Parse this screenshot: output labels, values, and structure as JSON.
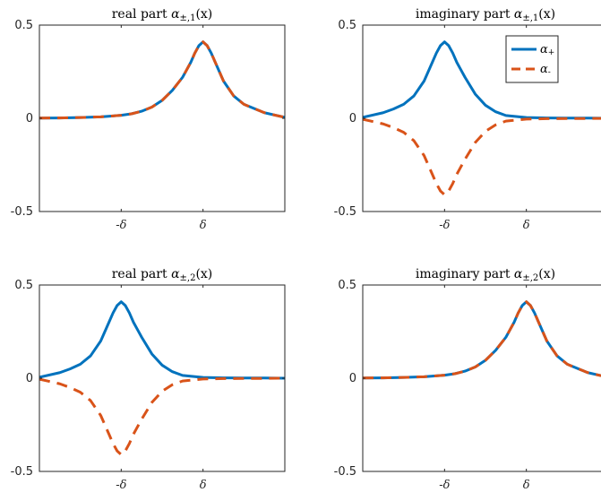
{
  "colors": {
    "alpha_plus": "#0072BD",
    "alpha_minus": "#D95319"
  },
  "chart_data": [
    {
      "type": "line",
      "title": "real part α±,1(x)",
      "title_main": "real part ",
      "title_sym": "α",
      "title_sub": "±,1",
      "title_arg": "(x)",
      "xlim": [
        -3,
        3
      ],
      "ylim": [
        -0.5,
        0.5
      ],
      "yticks": [
        0.5,
        0,
        -0.5
      ],
      "ytick_labels": [
        "0.5",
        "0",
        "-0.5"
      ],
      "xticks": [
        -1,
        1
      ],
      "xtick_labels": [
        "-δ",
        "δ"
      ],
      "legend": null,
      "series": [
        {
          "name": "α+",
          "style": "solid",
          "color": "#0072BD",
          "x": [
            -3,
            -2.5,
            -2,
            -1.5,
            -1,
            -0.75,
            -0.5,
            -0.25,
            0,
            0.25,
            0.5,
            0.6,
            0.7,
            0.8,
            0.9,
            1.0,
            1.1,
            1.2,
            1.3,
            1.4,
            1.5,
            1.75,
            2,
            2.5,
            3
          ],
          "y": [
            0.001,
            0.002,
            0.004,
            0.008,
            0.016,
            0.024,
            0.038,
            0.06,
            0.096,
            0.15,
            0.22,
            0.26,
            0.3,
            0.35,
            0.39,
            0.41,
            0.39,
            0.35,
            0.3,
            0.25,
            0.2,
            0.12,
            0.075,
            0.03,
            0.005
          ]
        },
        {
          "name": "α-",
          "style": "dashed",
          "color": "#D95319",
          "x": [
            -3,
            -2.5,
            -2,
            -1.5,
            -1,
            -0.75,
            -0.5,
            -0.25,
            0,
            0.25,
            0.5,
            0.6,
            0.7,
            0.8,
            0.9,
            1.0,
            1.1,
            1.2,
            1.3,
            1.4,
            1.5,
            1.75,
            2,
            2.5,
            3
          ],
          "y": [
            0.001,
            0.002,
            0.004,
            0.008,
            0.016,
            0.024,
            0.038,
            0.06,
            0.096,
            0.15,
            0.22,
            0.26,
            0.3,
            0.35,
            0.39,
            0.41,
            0.39,
            0.35,
            0.3,
            0.25,
            0.2,
            0.12,
            0.075,
            0.03,
            0.005
          ]
        }
      ]
    },
    {
      "type": "line",
      "title": "imaginary part α±,1(x)",
      "title_main": "imaginary part ",
      "title_sym": "α",
      "title_sub": "±,1",
      "title_arg": "(x)",
      "xlim": [
        -3,
        3
      ],
      "ylim": [
        -0.5,
        0.5
      ],
      "yticks": [
        0.5,
        0,
        -0.5
      ],
      "ytick_labels": [
        "0.5",
        "0",
        "-0.5"
      ],
      "xticks": [
        -1,
        1
      ],
      "xtick_labels": [
        "-δ",
        "δ"
      ],
      "legend": {
        "position": "top-right",
        "entries": [
          {
            "label": "α",
            "sub": "+",
            "style": "solid",
            "color": "#0072BD"
          },
          {
            "label": "α",
            "sub": "-",
            "style": "dashed",
            "color": "#D95319"
          }
        ]
      },
      "series": [
        {
          "name": "α+",
          "style": "solid",
          "color": "#0072BD",
          "x": [
            -3,
            -2.5,
            -2.25,
            -2,
            -1.75,
            -1.5,
            -1.4,
            -1.3,
            -1.2,
            -1.1,
            -1,
            -0.9,
            -0.8,
            -0.7,
            -0.6,
            -0.5,
            -0.25,
            0,
            0.25,
            0.5,
            1,
            1.5,
            2,
            2.5,
            3
          ],
          "y": [
            0.005,
            0.03,
            0.05,
            0.075,
            0.12,
            0.2,
            0.25,
            0.3,
            0.35,
            0.39,
            0.41,
            0.39,
            0.35,
            0.3,
            0.26,
            0.22,
            0.13,
            0.07,
            0.035,
            0.015,
            0.004,
            0.002,
            0.001,
            0.001,
            0
          ]
        },
        {
          "name": "α-",
          "style": "dashed",
          "color": "#D95319",
          "x": [
            -3,
            -2.5,
            -2.25,
            -2,
            -1.75,
            -1.5,
            -1.4,
            -1.3,
            -1.2,
            -1.1,
            -1,
            -0.9,
            -0.8,
            -0.7,
            -0.6,
            -0.5,
            -0.25,
            0,
            0.25,
            0.5,
            1,
            1.5,
            2,
            2.5,
            3
          ],
          "y": [
            -0.005,
            -0.03,
            -0.05,
            -0.075,
            -0.12,
            -0.2,
            -0.25,
            -0.3,
            -0.35,
            -0.39,
            -0.41,
            -0.39,
            -0.35,
            -0.3,
            -0.26,
            -0.22,
            -0.13,
            -0.07,
            -0.035,
            -0.015,
            -0.004,
            -0.002,
            -0.001,
            -0.001,
            0
          ]
        }
      ]
    },
    {
      "type": "line",
      "title": "real part α±,2(x)",
      "title_main": "real part ",
      "title_sym": "α",
      "title_sub": "±,2",
      "title_arg": "(x)",
      "xlim": [
        -3,
        3
      ],
      "ylim": [
        -0.5,
        0.5
      ],
      "yticks": [
        0.5,
        0,
        -0.5
      ],
      "ytick_labels": [
        "0.5",
        "0",
        "-0.5"
      ],
      "xticks": [
        -1,
        1
      ],
      "xtick_labels": [
        "-δ",
        "δ"
      ],
      "legend": null,
      "series": [
        {
          "name": "α+",
          "style": "solid",
          "color": "#0072BD",
          "x": [
            -3,
            -2.5,
            -2.25,
            -2,
            -1.75,
            -1.5,
            -1.4,
            -1.3,
            -1.2,
            -1.1,
            -1,
            -0.9,
            -0.8,
            -0.7,
            -0.6,
            -0.5,
            -0.25,
            0,
            0.25,
            0.5,
            1,
            1.5,
            2,
            2.5,
            3
          ],
          "y": [
            0.005,
            0.03,
            0.05,
            0.075,
            0.12,
            0.2,
            0.25,
            0.3,
            0.35,
            0.39,
            0.41,
            0.39,
            0.35,
            0.3,
            0.26,
            0.22,
            0.13,
            0.07,
            0.035,
            0.015,
            0.004,
            0.002,
            0.001,
            0.001,
            0
          ]
        },
        {
          "name": "α-",
          "style": "dashed",
          "color": "#D95319",
          "x": [
            -3,
            -2.5,
            -2.25,
            -2,
            -1.75,
            -1.5,
            -1.4,
            -1.3,
            -1.2,
            -1.1,
            -1,
            -0.9,
            -0.8,
            -0.7,
            -0.6,
            -0.5,
            -0.25,
            0,
            0.25,
            0.5,
            1,
            1.5,
            2,
            2.5,
            3
          ],
          "y": [
            -0.005,
            -0.03,
            -0.05,
            -0.075,
            -0.12,
            -0.2,
            -0.25,
            -0.3,
            -0.35,
            -0.39,
            -0.41,
            -0.39,
            -0.35,
            -0.3,
            -0.26,
            -0.22,
            -0.13,
            -0.07,
            -0.035,
            -0.015,
            -0.004,
            -0.002,
            -0.001,
            -0.001,
            0
          ]
        }
      ]
    },
    {
      "type": "line",
      "title": "imaginary part α±,2(x)",
      "title_main": "imaginary part ",
      "title_sym": "α",
      "title_sub": "±,2",
      "title_arg": "(x)",
      "xlim": [
        -3,
        3
      ],
      "ylim": [
        -0.5,
        0.5
      ],
      "yticks": [
        0.5,
        0,
        -0.5
      ],
      "ytick_labels": [
        "0.5",
        "0",
        "-0.5"
      ],
      "xticks": [
        -1,
        1
      ],
      "xtick_labels": [
        "-δ",
        "δ"
      ],
      "legend": null,
      "series": [
        {
          "name": "α+",
          "style": "solid",
          "color": "#0072BD",
          "x": [
            -3,
            -2.5,
            -2,
            -1.5,
            -1,
            -0.75,
            -0.5,
            -0.25,
            0,
            0.25,
            0.5,
            0.6,
            0.7,
            0.8,
            0.9,
            1.0,
            1.1,
            1.2,
            1.3,
            1.4,
            1.5,
            1.75,
            2,
            2.5,
            3
          ],
          "y": [
            0.001,
            0.002,
            0.004,
            0.008,
            0.016,
            0.024,
            0.038,
            0.06,
            0.096,
            0.15,
            0.22,
            0.26,
            0.3,
            0.35,
            0.39,
            0.41,
            0.39,
            0.35,
            0.3,
            0.25,
            0.2,
            0.12,
            0.075,
            0.03,
            0.005
          ]
        },
        {
          "name": "α-",
          "style": "dashed",
          "color": "#D95319",
          "x": [
            -3,
            -2.5,
            -2,
            -1.5,
            -1,
            -0.75,
            -0.5,
            -0.25,
            0,
            0.25,
            0.5,
            0.6,
            0.7,
            0.8,
            0.9,
            1.0,
            1.1,
            1.2,
            1.3,
            1.4,
            1.5,
            1.75,
            2,
            2.5,
            3
          ],
          "y": [
            0.001,
            0.002,
            0.004,
            0.008,
            0.016,
            0.024,
            0.038,
            0.06,
            0.096,
            0.15,
            0.22,
            0.26,
            0.3,
            0.35,
            0.39,
            0.41,
            0.39,
            0.35,
            0.3,
            0.25,
            0.2,
            0.12,
            0.075,
            0.03,
            0.005
          ]
        }
      ]
    }
  ]
}
